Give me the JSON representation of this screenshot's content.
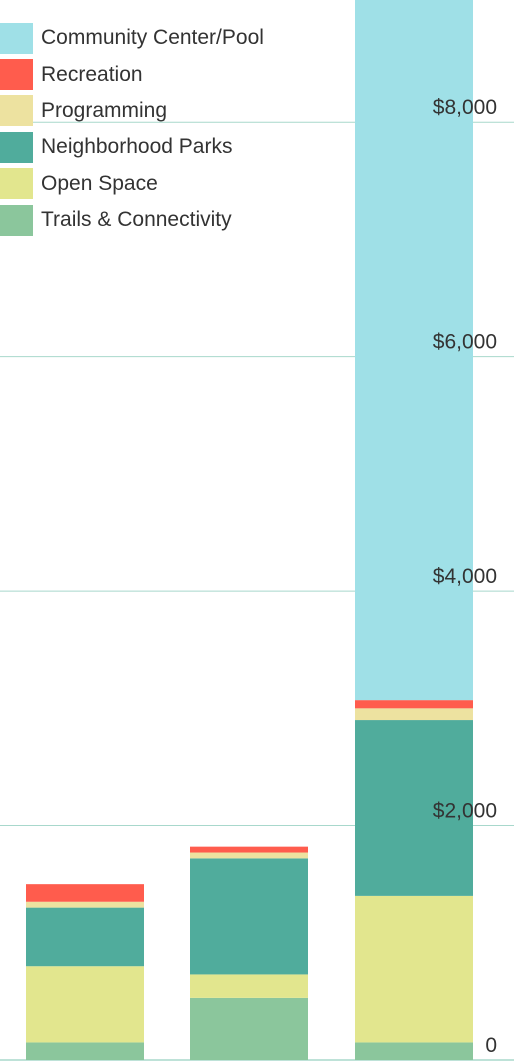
{
  "chart_data": {
    "type": "bar",
    "stacked": true,
    "categories": [
      "",
      "",
      ""
    ],
    "series": [
      {
        "name": "Trails & Connectivity",
        "color": "#8bc69c",
        "values": [
          150,
          530,
          150
        ]
      },
      {
        "name": "Open Space",
        "color": "#e2e68e",
        "values": [
          650,
          200,
          1250
        ]
      },
      {
        "name": "Neighborhood Parks",
        "color": "#50ac9c",
        "values": [
          500,
          990,
          1500
        ]
      },
      {
        "name": "Programming",
        "color": "#ede2a0",
        "values": [
          50,
          50,
          100
        ]
      },
      {
        "name": "Recreation",
        "color": "#ff5c4d",
        "values": [
          150,
          50,
          70
        ]
      },
      {
        "name": "Community Center/Pool",
        "color": "#9fe0e7",
        "values": [
          0,
          0,
          6000
        ]
      }
    ],
    "ylim": [
      0,
      9000
    ],
    "yticks": [
      0,
      2000,
      4000,
      6000,
      8000
    ],
    "ytick_labels": [
      "0",
      "$2,000",
      "$4,000",
      "$6,000",
      "$8,000"
    ],
    "legend_position": "top-left",
    "legend_order": [
      "Community Center/Pool",
      "Recreation",
      "Programming",
      "Neighborhood Parks",
      "Open Space",
      "Trails & Connectivity"
    ],
    "grid": true,
    "title": "",
    "xlabel": "",
    "ylabel": ""
  }
}
